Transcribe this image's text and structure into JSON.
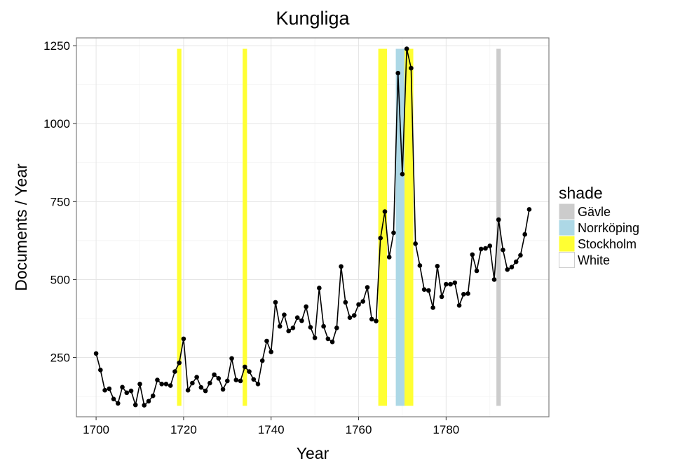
{
  "chart_data": {
    "type": "line",
    "title": "Kungliga",
    "xlabel": "Year",
    "ylabel": "Documents / Year",
    "xlim": [
      1695.5,
      1803.5
    ],
    "ylim": [
      60,
      1275
    ],
    "x_ticks": [
      1700,
      1720,
      1740,
      1760,
      1780
    ],
    "y_ticks": [
      250,
      500,
      750,
      1000,
      1250
    ],
    "grid": true,
    "legend": {
      "title": "shade",
      "position": "right",
      "entries": [
        {
          "label": "Gävle",
          "color": "#cccccc"
        },
        {
          "label": "Norrköping",
          "color": "#add8e6"
        },
        {
          "label": "Stockholm",
          "color": "#ffff33"
        },
        {
          "label": "White",
          "color": "#ffffff"
        }
      ]
    },
    "shade_bands": [
      {
        "shade": "Stockholm",
        "x0": 1718.5,
        "x1": 1719.5,
        "ymin": 95,
        "ymax": 1240
      },
      {
        "shade": "Stockholm",
        "x0": 1733.5,
        "x1": 1734.5,
        "ymin": 95,
        "ymax": 1240
      },
      {
        "shade": "Stockholm",
        "x0": 1764.5,
        "x1": 1766.5,
        "ymin": 95,
        "ymax": 1240
      },
      {
        "shade": "Norrköping",
        "x0": 1768.5,
        "x1": 1770.5,
        "ymin": 95,
        "ymax": 1240
      },
      {
        "shade": "Stockholm",
        "x0": 1770.5,
        "x1": 1772.5,
        "ymin": 95,
        "ymax": 1240
      },
      {
        "shade": "Gävle",
        "x0": 1791.5,
        "x1": 1792.5,
        "ymin": 95,
        "ymax": 1240
      }
    ],
    "series": [
      {
        "color": "#000000",
        "x": [
          1700,
          1701,
          1702,
          1703,
          1704,
          1705,
          1706,
          1707,
          1708,
          1709,
          1710,
          1711,
          1712,
          1713,
          1714,
          1715,
          1716,
          1717,
          1718,
          1719,
          1720,
          1721,
          1722,
          1723,
          1724,
          1725,
          1726,
          1727,
          1728,
          1729,
          1730,
          1731,
          1732,
          1733,
          1734,
          1735,
          1736,
          1737,
          1738,
          1739,
          1740,
          1741,
          1742,
          1743,
          1744,
          1745,
          1746,
          1747,
          1748,
          1749,
          1750,
          1751,
          1752,
          1753,
          1754,
          1755,
          1756,
          1757,
          1758,
          1759,
          1760,
          1761,
          1762,
          1763,
          1764,
          1765,
          1766,
          1767,
          1768,
          1769,
          1770,
          1771,
          1772,
          1773,
          1774,
          1775,
          1776,
          1777,
          1778,
          1779,
          1780,
          1781,
          1782,
          1783,
          1784,
          1785,
          1786,
          1787,
          1788,
          1789,
          1790,
          1791,
          1792,
          1793,
          1794,
          1795,
          1796,
          1797,
          1798,
          1799
        ],
        "y": [
          263,
          210,
          145,
          150,
          117,
          103,
          155,
          137,
          143,
          98,
          165,
          97,
          110,
          127,
          178,
          165,
          165,
          160,
          205,
          233,
          310,
          145,
          168,
          187,
          154,
          143,
          168,
          195,
          183,
          148,
          175,
          247,
          178,
          175,
          220,
          205,
          180,
          165,
          240,
          303,
          268,
          427,
          350,
          387,
          335,
          345,
          378,
          368,
          413,
          347,
          313,
          473,
          350,
          310,
          300,
          345,
          542,
          427,
          378,
          385,
          420,
          430,
          475,
          373,
          367,
          633,
          718,
          572,
          650,
          1162,
          838,
          1240,
          1178,
          615,
          545,
          468,
          465,
          410,
          543,
          445,
          485,
          485,
          490,
          417,
          453,
          455,
          580,
          528,
          598,
          600,
          608,
          500,
          692,
          595,
          532,
          540,
          557,
          578,
          645,
          725
        ]
      }
    ]
  }
}
